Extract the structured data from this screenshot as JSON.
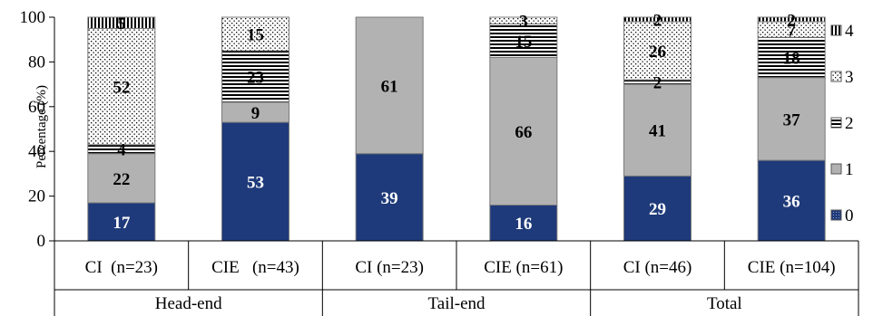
{
  "chart_data": {
    "type": "stacked-bar",
    "ylabel": "Percentage (%)",
    "ylim": [
      0,
      100
    ],
    "yticks": [
      0,
      20,
      40,
      60,
      80,
      100
    ],
    "grid": false,
    "legend_position": "right",
    "groups": [
      {
        "label": "Head-end",
        "categories": [
          "CI  (n=23)",
          "CIE   (n=43)"
        ]
      },
      {
        "label": "Tail-end",
        "categories": [
          "CI (n=23)",
          "CIE (n=61)"
        ]
      },
      {
        "label": "Total",
        "categories": [
          "CI (n=46)",
          "CIE (n=104)"
        ]
      }
    ],
    "categories": [
      "CI  (n=23)",
      "CIE   (n=43)",
      "CI (n=23)",
      "CIE (n=61)",
      "CI (n=46)",
      "CIE (n=104)"
    ],
    "series": [
      {
        "name": "0",
        "values": [
          17,
          53,
          39,
          16,
          29,
          36
        ],
        "color": "#1F3A7A",
        "pattern": "solid"
      },
      {
        "name": "1",
        "values": [
          22,
          9,
          61,
          66,
          41,
          37
        ],
        "color": "#B2B2B2",
        "pattern": "solid"
      },
      {
        "name": "2",
        "values": [
          4,
          23,
          0,
          15,
          2,
          18
        ],
        "color": "#000000",
        "pattern": "horizontal-lines"
      },
      {
        "name": "3",
        "values": [
          52,
          15,
          0,
          3,
          26,
          7
        ],
        "color": "#000000",
        "pattern": "dots"
      },
      {
        "name": "4",
        "values": [
          5,
          0,
          0,
          0,
          2,
          2
        ],
        "color": "#000000",
        "pattern": "vertical-lines"
      }
    ],
    "labels": [
      [
        "17",
        "22",
        "4",
        "52",
        "5"
      ],
      [
        "53",
        "9",
        "23",
        "15",
        ""
      ],
      [
        "39",
        "61",
        "",
        "",
        ""
      ],
      [
        "16",
        "66",
        "15",
        "3",
        ""
      ],
      [
        "29",
        "41",
        "2",
        "26",
        "2"
      ],
      [
        "36",
        "37",
        "18",
        "7",
        "2"
      ]
    ]
  }
}
